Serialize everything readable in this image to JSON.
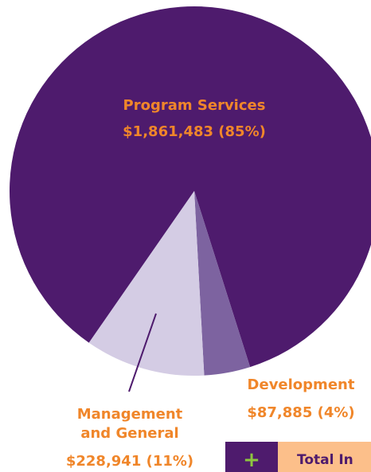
{
  "chart_data": {
    "type": "pie",
    "categories": [
      "Program Services",
      "Development",
      "Management and General"
    ],
    "values": [
      1861483,
      87885,
      228941
    ],
    "value_labels": [
      "$1,861,483 (85%)",
      "$87,885 (4%)",
      "$228,941 (11%)"
    ],
    "colors": [
      "#4e1b6d",
      "#7d63a0",
      "#d4cce4"
    ]
  },
  "button": {
    "icon": "+",
    "label": "Total In"
  }
}
